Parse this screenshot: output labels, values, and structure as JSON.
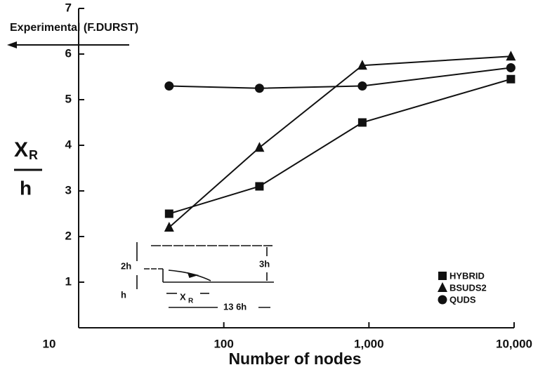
{
  "chart_data": {
    "type": "line",
    "reference": {
      "label": "Experimental (F.DURST)",
      "value": 6.2
    },
    "y_label": {
      "symbol": "X",
      "subscript": "R",
      "denominator": "h"
    },
    "x_label": "Number of nodes",
    "x_log": true,
    "xlim": [
      10,
      10000
    ],
    "xticks": [
      10,
      100,
      {
        "value": 1000,
        "label": "1,000"
      },
      {
        "value": 10000,
        "label": "10,000"
      }
    ],
    "ylim": [
      0,
      7
    ],
    "yticks": [
      1,
      2,
      3,
      4,
      5,
      6,
      7
    ],
    "legend": "lower right",
    "series": [
      {
        "name": "HYBRID",
        "marker": "square",
        "color": "#111111",
        "x": [
          42,
          176,
          900,
          9500
        ],
        "values": [
          2.5,
          3.1,
          4.5,
          5.45
        ]
      },
      {
        "name": "BSUDS2",
        "marker": "triangle",
        "color": "#111111",
        "x": [
          42,
          176,
          900,
          9500
        ],
        "values": [
          2.2,
          3.95,
          5.75,
          5.95
        ]
      },
      {
        "name": "QUDS",
        "marker": "circle",
        "color": "#111111",
        "x": [
          42,
          176,
          900,
          9500
        ],
        "values": [
          5.3,
          5.25,
          5.3,
          5.7
        ]
      }
    ],
    "inset": {
      "labels": [
        "2h",
        "h",
        "3h",
        "13 6h"
      ],
      "xr": "X",
      "xr_sub": "R"
    }
  }
}
